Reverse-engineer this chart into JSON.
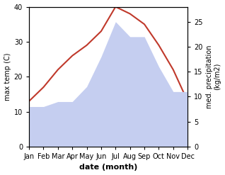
{
  "months": [
    "Jan",
    "Feb",
    "Mar",
    "Apr",
    "May",
    "Jun",
    "Jul",
    "Aug",
    "Sep",
    "Oct",
    "Nov",
    "Dec"
  ],
  "max_temp": [
    13,
    17,
    22,
    26,
    29,
    33,
    40,
    38,
    35,
    29,
    22,
    13
  ],
  "precipitation": [
    8,
    8,
    9,
    9,
    12,
    18,
    25,
    22,
    22,
    16,
    11,
    11
  ],
  "temp_color": "#c0392b",
  "precip_fill_color": "#c5cef0",
  "temp_ylim": [
    0,
    40
  ],
  "precip_ylim": [
    0,
    28
  ],
  "precip_yticks": [
    0,
    5,
    10,
    15,
    20,
    25
  ],
  "temp_yticks": [
    0,
    10,
    20,
    30,
    40
  ],
  "xlabel": "date (month)",
  "ylabel_left": "max temp (C)",
  "ylabel_right": "med. precipitation\n(kg/m2)",
  "bg_color": "#ffffff"
}
